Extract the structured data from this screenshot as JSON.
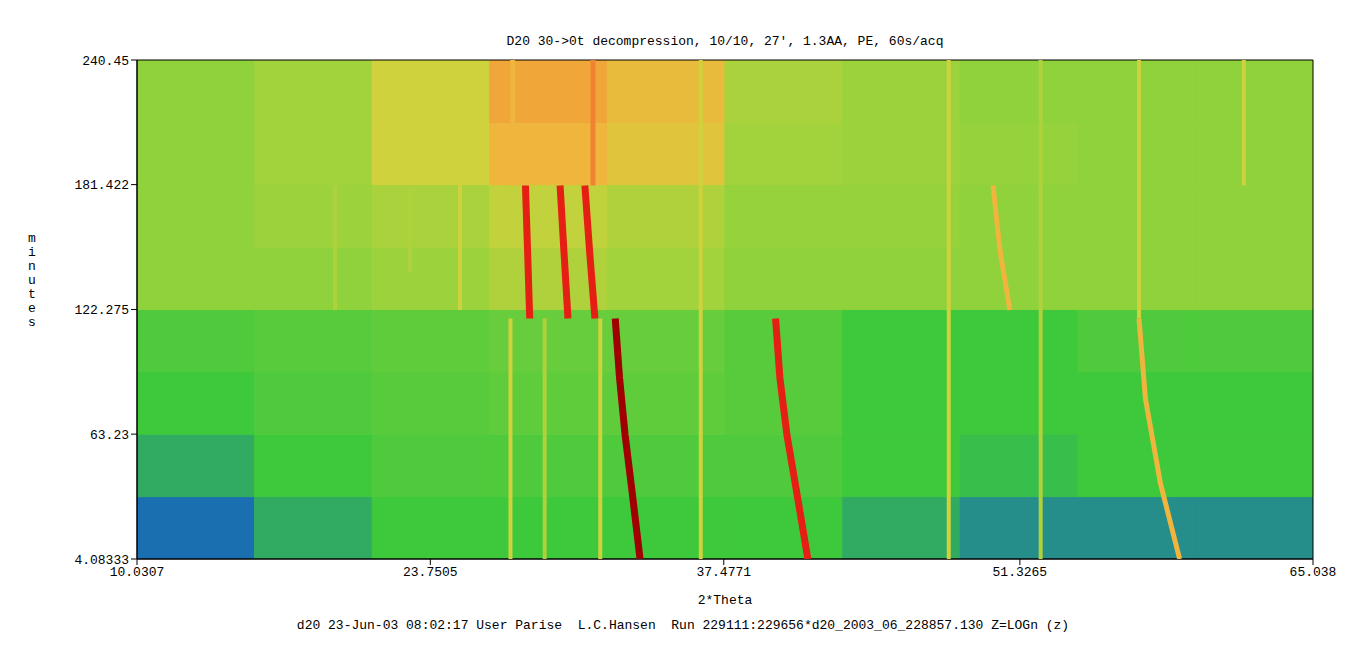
{
  "chart_data": {
    "type": "heatmap",
    "title": "D20 30->0t decompression, 10/10, 27', 1.3AA, PE, 60s/acq",
    "footer": "d20 23-Jun-03 08:02:17 User Parise  L.C.Hansen  Run 229111:229656*d20_2003_06_228857.130 Z=LOGn (z)",
    "x_label": "2*Theta",
    "y_label": "minutes",
    "xlim": [
      10.0307,
      65.038
    ],
    "xticks": [
      10.0307,
      23.7505,
      37.4771,
      51.3265,
      65.038
    ],
    "ylim": [
      4.08333,
      240.45
    ],
    "yticks": [
      4.08333,
      63.23,
      122.275,
      181.422,
      240.45
    ],
    "zlim": [
      0,
      9
    ],
    "cells": {
      "x_edges": [
        10.0307,
        15.53,
        21.03,
        26.53,
        32.03,
        37.53,
        43.04,
        48.54,
        54.04,
        59.54,
        65.038
      ],
      "y_edges": [
        4.08333,
        33.6,
        63.23,
        92.7,
        122.275,
        151.8,
        181.422,
        210.9,
        240.45
      ],
      "z": [
        [
          1.5,
          2.5,
          3,
          3,
          3,
          3,
          2.5,
          2,
          2,
          2
        ],
        [
          2.5,
          3,
          3.2,
          3.2,
          3.2,
          3.2,
          3,
          2.8,
          3,
          3
        ],
        [
          3,
          3.2,
          3.3,
          3.4,
          3.4,
          3.3,
          3,
          3,
          3,
          3
        ],
        [
          3.2,
          3.3,
          3.4,
          3.5,
          3.5,
          3.3,
          3,
          3,
          3.2,
          3.2
        ],
        [
          4,
          4,
          4.2,
          4.5,
          4.3,
          4,
          4,
          4,
          4,
          4
        ],
        [
          4,
          4.2,
          4.4,
          4.8,
          4.5,
          4.1,
          4.1,
          4,
          4,
          4
        ],
        [
          4,
          4.3,
          5,
          6,
          5.5,
          4.3,
          4.2,
          4.1,
          4,
          4
        ],
        [
          4,
          4.3,
          5,
          6.3,
          5.8,
          4.4,
          4.2,
          4,
          4,
          4
        ]
      ]
    },
    "series": [
      {
        "z": 4.5,
        "x": [
          29.1,
          29.1
        ],
        "y": [
          4.08333,
          118
        ]
      },
      {
        "z": 4.5,
        "x": [
          52.3,
          52.3
        ],
        "y": [
          4.08333,
          240.45
        ]
      },
      {
        "z": 4.5,
        "x": [
          22.8,
          22.8
        ],
        "y": [
          140,
          181
        ]
      },
      {
        "z": 4.5,
        "x": [
          19.3,
          19.3
        ],
        "y": [
          122,
          181
        ]
      },
      {
        "z": 5,
        "x": [
          27.5,
          27.5
        ],
        "y": [
          4.08333,
          118
        ]
      },
      {
        "z": 5,
        "x": [
          31.7,
          31.7
        ],
        "y": [
          4.08333,
          118
        ]
      },
      {
        "z": 5,
        "x": [
          36.4,
          36.4
        ],
        "y": [
          4.08333,
          240.45
        ]
      },
      {
        "z": 5,
        "x": [
          48.0,
          48.0
        ],
        "y": [
          4.08333,
          240.45
        ]
      },
      {
        "z": 5,
        "x": [
          56.9,
          56.9
        ],
        "y": [
          118,
          240.45
        ]
      },
      {
        "z": 5,
        "x": [
          61.8,
          61.8
        ],
        "y": [
          181,
          240.45
        ]
      },
      {
        "z": 5,
        "x": [
          25.14,
          25.14
        ],
        "y": [
          122,
          200
        ]
      },
      {
        "z": 6,
        "x": [
          58.8,
          57.9,
          57.2,
          56.9
        ],
        "y": [
          4.08333,
          40,
          80,
          118
        ]
      },
      {
        "z": 6,
        "x": [
          50.86,
          50.4,
          50.07
        ],
        "y": [
          122,
          150,
          181
        ]
      },
      {
        "z": 6,
        "x": [
          27.6,
          27.6
        ],
        "y": [
          181,
          240.45
        ]
      },
      {
        "z": 7,
        "x": [
          31.36,
          31.36
        ],
        "y": [
          181,
          240.45
        ]
      },
      {
        "z": 8,
        "x": [
          41.41,
          40.9,
          40.43,
          40.1,
          39.9
        ],
        "y": [
          4.08333,
          35,
          63,
          90,
          118
        ]
      },
      {
        "z": 8,
        "x": [
          28.4,
          28.3,
          28.2
        ],
        "y": [
          118,
          150,
          181
        ]
      },
      {
        "z": 8,
        "x": [
          30.19,
          30.0,
          29.82
        ],
        "y": [
          118,
          150,
          181
        ]
      },
      {
        "z": 8,
        "x": [
          31.45,
          31.2,
          30.98
        ],
        "y": [
          118,
          150,
          181
        ]
      },
      {
        "z": 9,
        "x": [
          33.56,
          33.2,
          32.86,
          32.6,
          32.4
        ],
        "y": [
          4.08333,
          35,
          63,
          90,
          118
        ]
      }
    ]
  }
}
